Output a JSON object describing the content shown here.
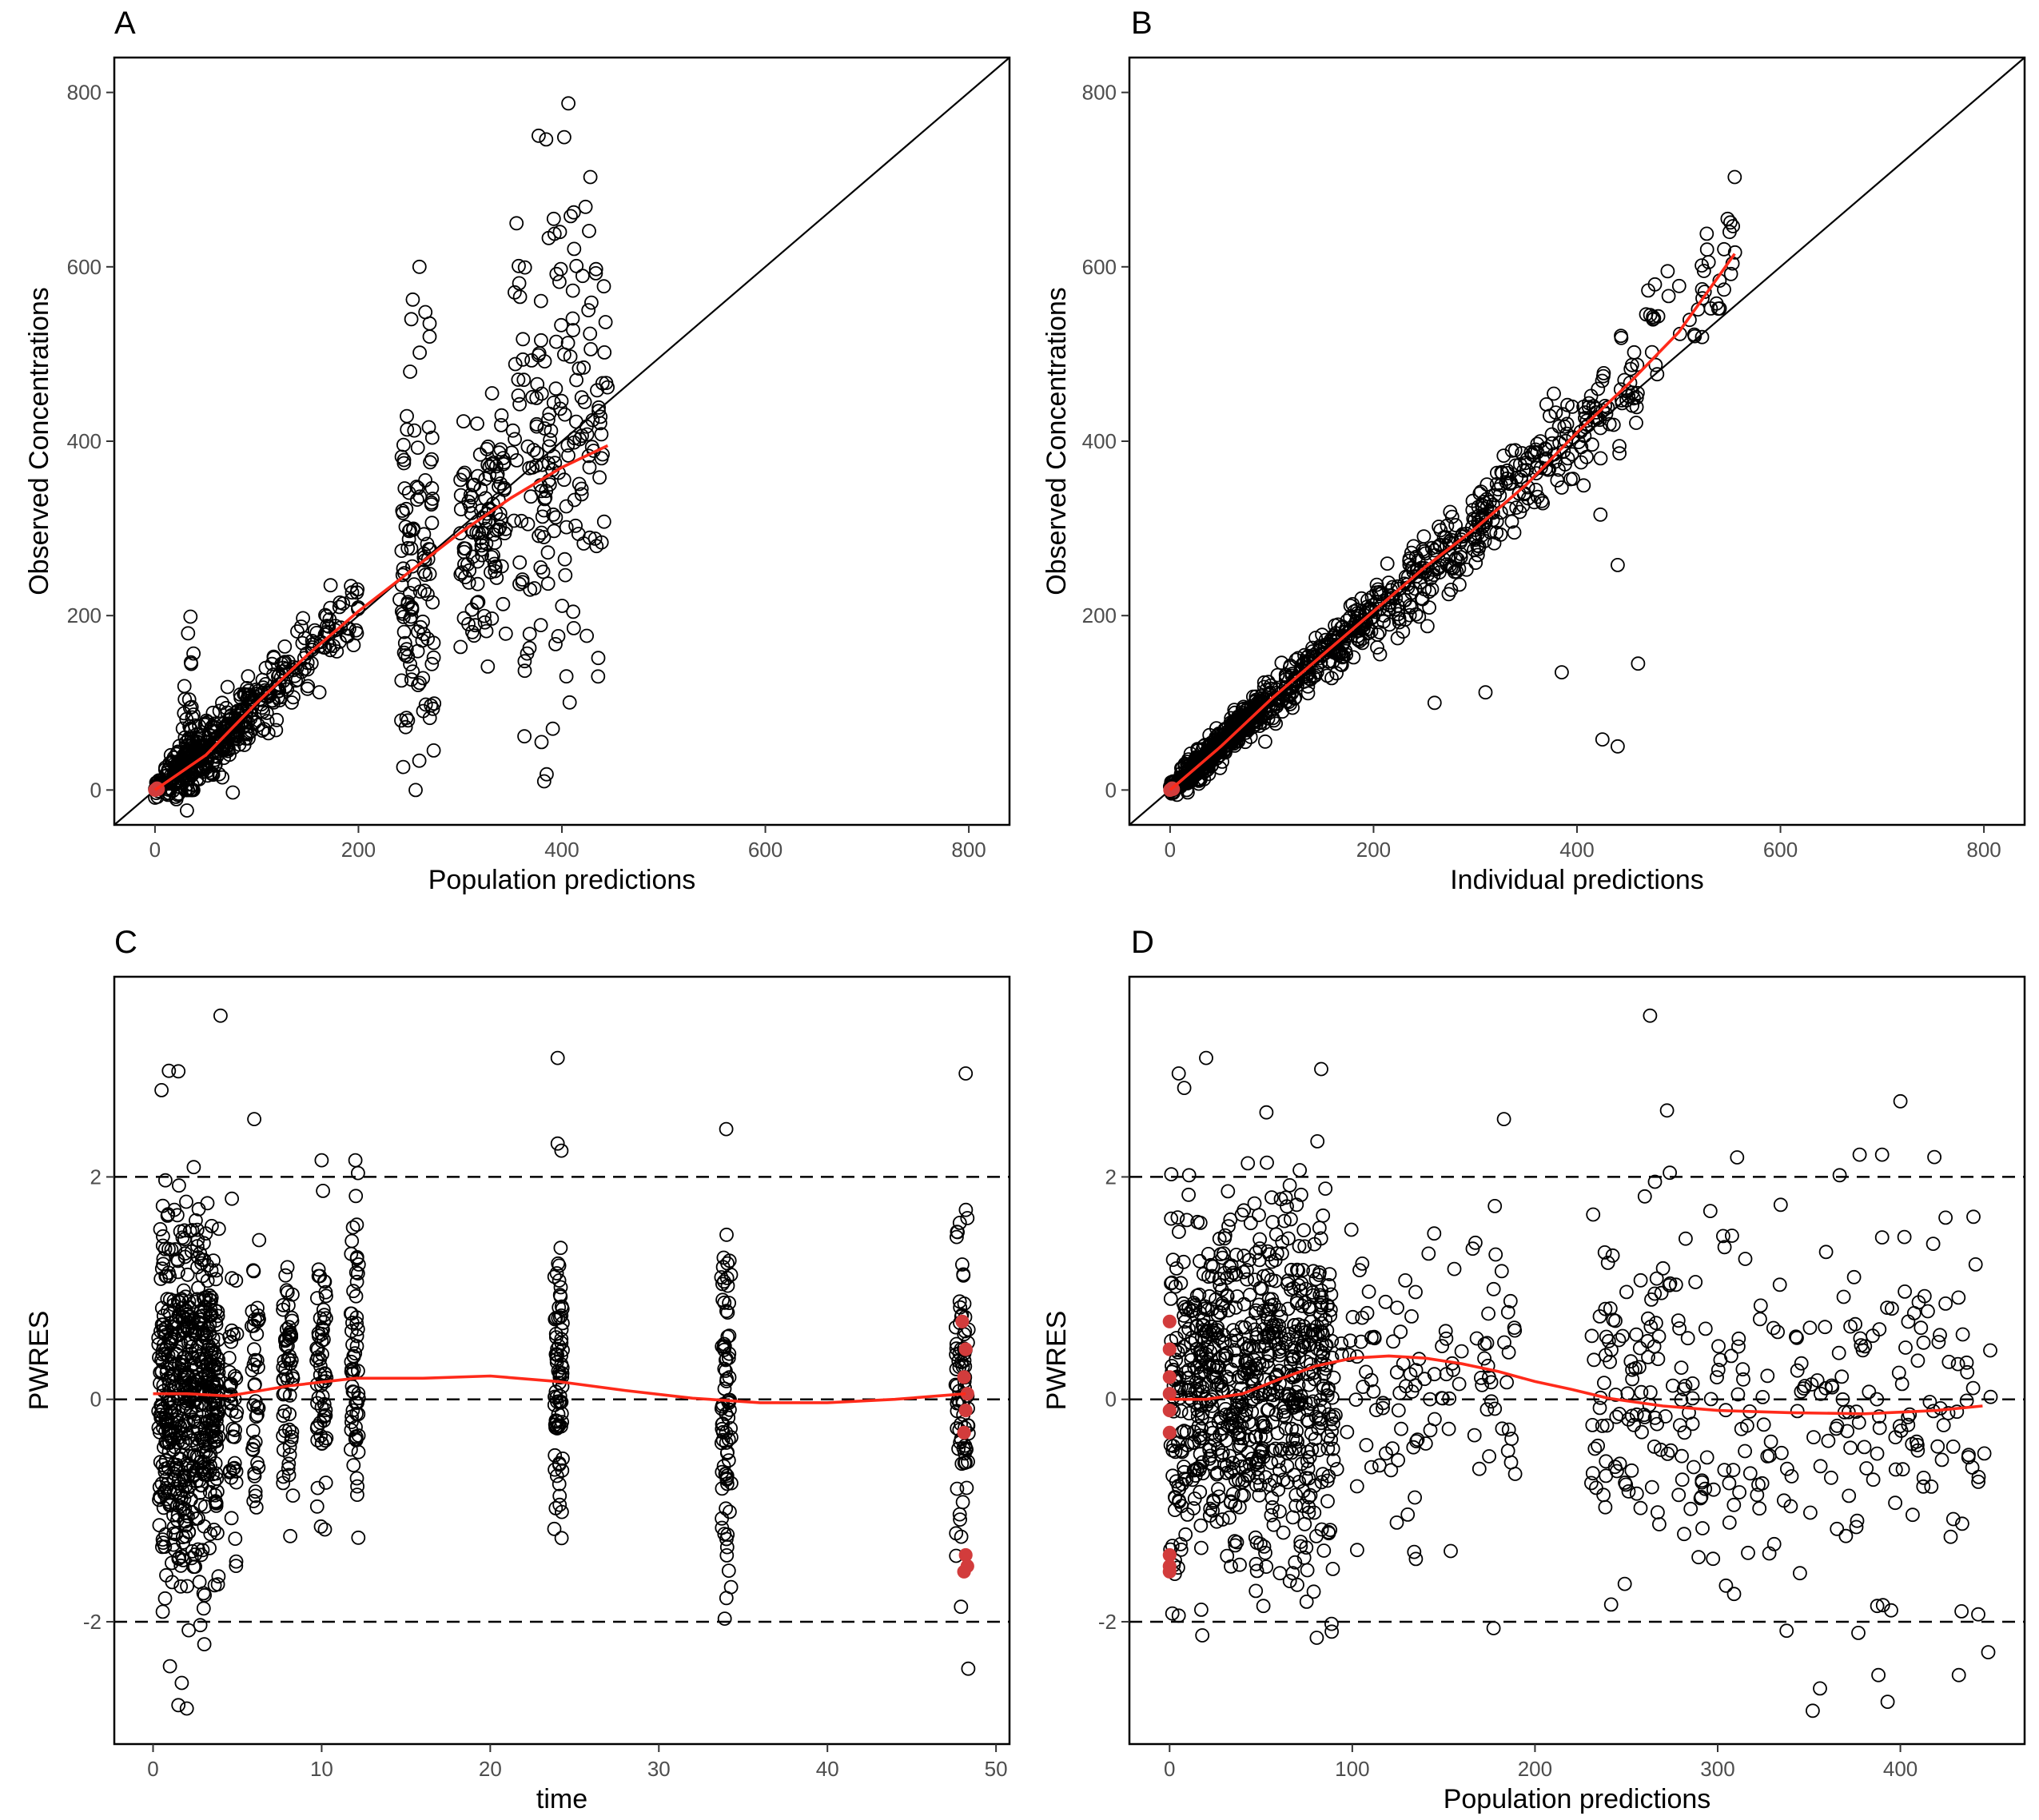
{
  "colors": {
    "points": "#000000",
    "smooth": "#ff2a1a",
    "blq": "#d23c3c",
    "frame": "#000000"
  },
  "chart_data": [
    {
      "id": "A",
      "letter": "A",
      "type": "scatter",
      "xlabel": "Population predictions",
      "ylabel": "Observed Concentrations",
      "xlim": [
        -40,
        840
      ],
      "ylim": [
        -40,
        840
      ],
      "xticks": [
        0,
        200,
        400,
        600,
        800
      ],
      "yticks": [
        0,
        200,
        400,
        600,
        800
      ],
      "reference": "identity",
      "smooth": [
        [
          0,
          0
        ],
        [
          50,
          40
        ],
        [
          100,
          100
        ],
        [
          150,
          155
        ],
        [
          200,
          205
        ],
        [
          250,
          250
        ],
        [
          300,
          295
        ],
        [
          350,
          335
        ],
        [
          400,
          370
        ],
        [
          445,
          395
        ]
      ],
      "clusters": [
        {
          "x": [
            0,
            8
          ],
          "xmean": 4,
          "slope": 1.0,
          "icpt": 2,
          "sd": 4,
          "n": 25
        },
        {
          "x": [
            10,
            40
          ],
          "xmean": 25,
          "slope": 1.05,
          "icpt": 0,
          "sd": 14,
          "n": 120
        },
        {
          "x": [
            28,
            38
          ],
          "xmean": 33,
          "slope": 0.0,
          "icpt": 60,
          "sd": 60,
          "n": 40,
          "yfloor": 0,
          "ytop": 235
        },
        {
          "x": [
            40,
            95
          ],
          "xmean": 70,
          "slope": 0.95,
          "icpt": 0,
          "sd": 18,
          "n": 200
        },
        {
          "x": [
            95,
            140
          ],
          "xmean": 118,
          "slope": 1.0,
          "icpt": 0,
          "sd": 20,
          "n": 70
        },
        {
          "x": [
            140,
            200
          ],
          "xmean": 170,
          "slope": 1.02,
          "icpt": 0,
          "sd": 25,
          "n": 60
        },
        {
          "x": [
            240,
            275
          ],
          "xmean": 258,
          "slope": 0.9,
          "icpt": 30,
          "sd": 110,
          "n": 110,
          "yfloor": 0
        },
        {
          "x": [
            300,
            345
          ],
          "xmean": 320,
          "slope": 0.95,
          "icpt": 0,
          "sd": 70,
          "n": 110
        },
        {
          "x": [
            350,
            445
          ],
          "xmean": 400,
          "slope": 1.0,
          "icpt": 0,
          "sd": 120,
          "n": 180,
          "yfloor": 10
        }
      ],
      "extra_points": [
        [
          260,
          600
        ],
        [
          428,
          703
        ],
        [
          392,
          655
        ],
        [
          387,
          633
        ],
        [
          398,
          640
        ],
        [
          270,
          535
        ],
        [
          270,
          520
        ],
        [
          252,
          540
        ],
        [
          385,
          18
        ],
        [
          380,
          55
        ]
      ],
      "blq": [
        [
          0,
          0
        ],
        [
          2,
          2
        ],
        [
          3,
          1
        ]
      ]
    },
    {
      "id": "B",
      "letter": "B",
      "type": "scatter",
      "xlabel": "Individual predictions",
      "ylabel": "Observed Concentrations",
      "xlim": [
        -40,
        840
      ],
      "ylim": [
        -40,
        840
      ],
      "xticks": [
        0,
        200,
        400,
        600,
        800
      ],
      "yticks": [
        0,
        200,
        400,
        600,
        800
      ],
      "reference": "identity",
      "smooth": [
        [
          0,
          0
        ],
        [
          50,
          50
        ],
        [
          100,
          105
        ],
        [
          150,
          155
        ],
        [
          200,
          205
        ],
        [
          250,
          255
        ],
        [
          300,
          300
        ],
        [
          350,
          350
        ],
        [
          400,
          410
        ],
        [
          450,
          465
        ],
        [
          500,
          525
        ],
        [
          555,
          615
        ]
      ],
      "clusters": [
        {
          "x": [
            0,
            10
          ],
          "xmean": 5,
          "slope": 1.0,
          "icpt": 0,
          "sd": 4,
          "n": 40
        },
        {
          "x": [
            10,
            90
          ],
          "xmean": 50,
          "slope": 1.05,
          "icpt": 0,
          "sd": 9,
          "n": 380
        },
        {
          "x": [
            90,
            200
          ],
          "xmean": 140,
          "slope": 1.02,
          "icpt": 0,
          "sd": 14,
          "n": 220
        },
        {
          "x": [
            200,
            320
          ],
          "xmean": 260,
          "slope": 1.0,
          "icpt": 0,
          "sd": 22,
          "n": 180
        },
        {
          "x": [
            320,
            460
          ],
          "xmean": 390,
          "slope": 1.02,
          "icpt": 0,
          "sd": 30,
          "n": 150
        },
        {
          "x": [
            460,
            560
          ],
          "xmean": 510,
          "slope": 1.1,
          "icpt": 0,
          "sd": 35,
          "n": 40
        }
      ],
      "extra_points": [
        [
          555,
          703
        ],
        [
          548,
          655
        ],
        [
          550,
          640
        ],
        [
          385,
          135
        ],
        [
          460,
          145
        ],
        [
          440,
          50
        ],
        [
          425,
          58
        ],
        [
          310,
          112
        ],
        [
          260,
          100
        ],
        [
          440,
          258
        ]
      ],
      "blq": [
        [
          0,
          0
        ],
        [
          2,
          2
        ],
        [
          3,
          1
        ]
      ]
    },
    {
      "id": "C",
      "letter": "C",
      "type": "scatter",
      "xlabel": "time",
      "ylabel": "PWRES",
      "xlim": [
        -2.3,
        50.8
      ],
      "ylim": [
        -3.1,
        3.8
      ],
      "xticks": [
        0,
        10,
        20,
        30,
        40,
        50
      ],
      "yticks": [
        -2,
        0,
        2
      ],
      "hlines": [
        -2,
        0,
        2
      ],
      "smooth": [
        [
          0,
          0.05
        ],
        [
          2,
          0.05
        ],
        [
          4.5,
          0.03
        ],
        [
          8,
          0.12
        ],
        [
          12,
          0.19
        ],
        [
          16,
          0.19
        ],
        [
          20,
          0.21
        ],
        [
          24,
          0.16
        ],
        [
          28,
          0.08
        ],
        [
          32,
          0.01
        ],
        [
          36,
          -0.03
        ],
        [
          40,
          -0.03
        ],
        [
          44,
          0
        ],
        [
          48.2,
          0.05
        ]
      ],
      "clusters": [
        {
          "x": [
            0.3,
            3.9
          ],
          "xmean": 2,
          "slope": 0,
          "icpt": 0,
          "sd": 0.8,
          "n": 600
        },
        {
          "x": [
            4.5,
            5.0
          ],
          "xmean": 4.7,
          "slope": 0,
          "icpt": 0,
          "sd": 0.7,
          "n": 40
        },
        {
          "x": [
            5.8,
            6.3
          ],
          "xmean": 6,
          "slope": 0,
          "icpt": 0,
          "sd": 0.65,
          "n": 40
        },
        {
          "x": [
            7.7,
            8.3
          ],
          "xmean": 8,
          "slope": 0,
          "icpt": 0.2,
          "sd": 0.6,
          "n": 60
        },
        {
          "x": [
            9.7,
            10.3
          ],
          "xmean": 10,
          "slope": 0,
          "icpt": 0.2,
          "sd": 0.65,
          "n": 60
        },
        {
          "x": [
            11.7,
            12.2
          ],
          "xmean": 12,
          "slope": 0,
          "icpt": 0.2,
          "sd": 0.6,
          "n": 60
        },
        {
          "x": [
            23.8,
            24.3
          ],
          "xmean": 24,
          "slope": 0,
          "icpt": 0.15,
          "sd": 0.75,
          "n": 80
        },
        {
          "x": [
            33.7,
            34.3
          ],
          "xmean": 34,
          "slope": 0,
          "icpt": 0,
          "sd": 0.75,
          "n": 80
        },
        {
          "x": [
            47.6,
            48.4
          ],
          "xmean": 48,
          "slope": 0,
          "icpt": 0.05,
          "sd": 0.8,
          "n": 80
        }
      ],
      "extra_points": [
        [
          4,
          3.45
        ],
        [
          24,
          3.07
        ],
        [
          48.2,
          2.93
        ],
        [
          1.5,
          2.95
        ],
        [
          0.5,
          2.78
        ],
        [
          6,
          2.52
        ],
        [
          34,
          2.43
        ],
        [
          24,
          2.3
        ],
        [
          10,
          2.15
        ],
        [
          12,
          2.15
        ],
        [
          1.5,
          -2.75
        ],
        [
          2,
          -2.78
        ],
        [
          1.7,
          -2.55
        ],
        [
          1,
          -2.4
        ],
        [
          3,
          -1.88
        ]
      ],
      "blq": [
        [
          48,
          0.7
        ],
        [
          48.2,
          0.45
        ],
        [
          48.1,
          0.2
        ],
        [
          48.3,
          0.05
        ],
        [
          48.2,
          -0.1
        ],
        [
          48.1,
          -0.3
        ],
        [
          48.2,
          -1.4
        ],
        [
          48.3,
          -1.5
        ],
        [
          48.1,
          -1.55
        ]
      ]
    },
    {
      "id": "D",
      "letter": "D",
      "type": "scatter",
      "xlabel": "Population predictions",
      "ylabel": "PWRES",
      "xlim": [
        -22,
        468
      ],
      "ylim": [
        -3.1,
        3.8
      ],
      "xticks": [
        0,
        100,
        200,
        300,
        400
      ],
      "yticks": [
        -2,
        0,
        2
      ],
      "hlines": [
        -2,
        0,
        2
      ],
      "smooth": [
        [
          0,
          0
        ],
        [
          20,
          0
        ],
        [
          40,
          0.05
        ],
        [
          60,
          0.18
        ],
        [
          80,
          0.3
        ],
        [
          100,
          0.37
        ],
        [
          120,
          0.39
        ],
        [
          140,
          0.37
        ],
        [
          160,
          0.32
        ],
        [
          180,
          0.25
        ],
        [
          200,
          0.16
        ],
        [
          220,
          0.09
        ],
        [
          240,
          0.01
        ],
        [
          270,
          -0.06
        ],
        [
          300,
          -0.1
        ],
        [
          340,
          -0.12
        ],
        [
          380,
          -0.13
        ],
        [
          420,
          -0.1
        ],
        [
          445,
          -0.06
        ]
      ],
      "clusters": [
        {
          "x": [
            0,
            90
          ],
          "xmean": 45,
          "slope": 0,
          "icpt": 0.1,
          "sd": 0.8,
          "n": 800
        },
        {
          "x": [
            90,
            190
          ],
          "xmean": 140,
          "slope": 0,
          "icpt": 0.3,
          "sd": 0.7,
          "n": 120
        },
        {
          "x": [
            230,
            290
          ],
          "xmean": 260,
          "slope": 0,
          "icpt": 0,
          "sd": 0.75,
          "n": 120
        },
        {
          "x": [
            290,
            450
          ],
          "xmean": 370,
          "slope": 0,
          "icpt": -0.1,
          "sd": 0.9,
          "n": 200
        }
      ],
      "extra_points": [
        [
          263,
          3.45
        ],
        [
          20,
          3.07
        ],
        [
          83,
          2.97
        ],
        [
          5,
          2.93
        ],
        [
          8,
          2.8
        ],
        [
          53,
          2.58
        ],
        [
          183,
          2.52
        ],
        [
          400,
          2.68
        ],
        [
          390,
          2.2
        ],
        [
          352,
          -2.8
        ],
        [
          356,
          -2.6
        ],
        [
          393,
          -2.72
        ],
        [
          388,
          -2.48
        ],
        [
          432,
          -2.48
        ],
        [
          377,
          -2.1
        ],
        [
          75,
          -1.82
        ]
      ],
      "blq": [
        [
          0,
          0.7
        ],
        [
          0,
          0.45
        ],
        [
          0,
          0.2
        ],
        [
          0,
          0.05
        ],
        [
          0,
          -0.1
        ],
        [
          0,
          -0.3
        ],
        [
          0,
          -1.4
        ],
        [
          0,
          -1.5
        ],
        [
          0,
          -1.55
        ]
      ]
    }
  ]
}
